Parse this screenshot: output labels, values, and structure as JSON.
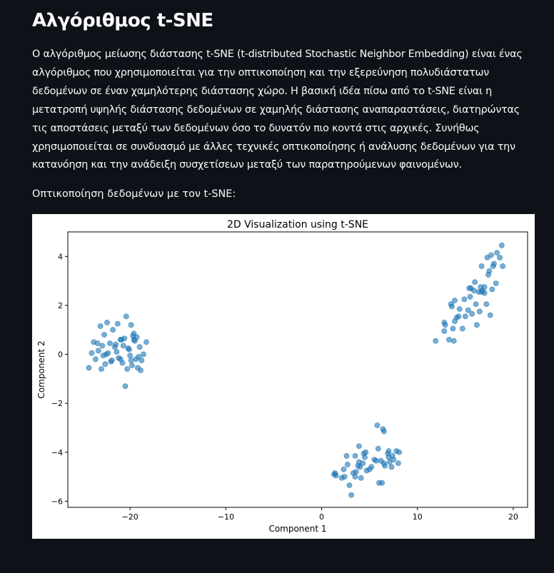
{
  "page": {
    "title": "Αλγόριθμος t-SNE",
    "intro": "Ο αλγόριθμος μείωσης διάστασης t-SNE (t-distributed Stochastic Neighbor Embedding) είναι ένας αλγόριθμος που χρησιμοποιείται για την οπτικοποίηση και την εξερεύνηση πολυδιάστατων δεδομένων σε έναν χαμηλότερης διάστασης χώρο. Η βασική ιδέα πίσω από το t-SNE είναι η μετατροπή υψηλής διάστασης δεδομένων σε χαμηλής διάστασης αναπαραστάσεις, διατηρώντας τις αποστάσεις μεταξύ των δεδομένων όσο το δυνατόν πιο κοντά στις αρχικές. Συνήθως χρησιμοποιείται σε συνδυασμό με άλλες τεχνικές οπτικοποίησης ή ανάλυσης δεδομένων για την κατανόηση και την ανάδειξη συσχετίσεων μεταξύ των παρατηρούμενων φαινομένων.",
    "subheading": "Οπτικοποίηση δεδομένων με τον t-SNE:"
  },
  "colors": {
    "background": "#0e1117",
    "text": "#fafafa",
    "point": "#1f77b4"
  },
  "chart_data": {
    "type": "scatter",
    "title": "2D Visualization using t-SNE",
    "xlabel": "Component 1",
    "ylabel": "Component 2",
    "xlim": [
      -26.5,
      21.5
    ],
    "ylim": [
      -6.25,
      5
    ],
    "xticks": [
      -20,
      -10,
      0,
      10,
      20
    ],
    "xtick_labels": [
      "−20",
      "−10",
      "0",
      "10",
      "20"
    ],
    "yticks": [
      -6,
      -4,
      -2,
      0,
      2,
      4
    ],
    "ytick_labels": [
      "−6",
      "−4",
      "−2",
      "0",
      "2",
      "4"
    ],
    "grid": false,
    "legend": "none",
    "series": [
      {
        "x": [
          -20.4,
          -22.4,
          -21.3,
          -19.9,
          -21.8,
          -23.1,
          -19.6,
          -22.7,
          -19.3,
          -20.6,
          -21.0,
          -23.8,
          -22.1,
          -19.7,
          -20.9,
          -19.5,
          -22.9,
          -21.6,
          -20.2,
          -19.0,
          -18.6,
          -24.0,
          -23.3,
          -21.4,
          -20.0,
          -22.5,
          -21.2,
          -19.4,
          -18.8,
          -23.6,
          -22.0,
          -20.8,
          -19.8,
          -24.3,
          -22.6,
          -21.9,
          -20.3,
          -19.2,
          -23.0,
          -18.9,
          -21.5,
          -20.1,
          -19.6,
          -22.8,
          -20.7,
          -23.4,
          -19.1,
          -21.0,
          -19.9,
          -22.3,
          -20.5,
          -18.3
        ],
        "y": [
          1.55,
          1.3,
          1.25,
          1.2,
          1.0,
          1.15,
          0.85,
          0.8,
          0.7,
          0.65,
          0.6,
          0.5,
          0.45,
          0.75,
          0.6,
          0.55,
          0.35,
          0.3,
          0.25,
          0.3,
          0.0,
          0.05,
          0.15,
          0.1,
          -0.05,
          0.0,
          -0.15,
          -0.2,
          -0.25,
          -0.2,
          -0.3,
          -0.35,
          -0.45,
          -0.55,
          -0.4,
          -0.25,
          -0.6,
          -0.55,
          -0.6,
          -0.65,
          0.4,
          0.2,
          0.6,
          -0.05,
          0.35,
          0.45,
          -0.1,
          -0.2,
          -0.25,
          0.05,
          -1.3,
          0.5
        ]
      },
      {
        "x": [
          18.8,
          18.3,
          17.7,
          18.6,
          17.3,
          18.0,
          17.5,
          16.7,
          18.9,
          17.9,
          17.4,
          16.0,
          17.0,
          16.6,
          15.4,
          15.9,
          16.8,
          16.4,
          15.5,
          14.9,
          13.9,
          16.1,
          17.2,
          15.3,
          14.4,
          13.6,
          16.5,
          15.7,
          17.6,
          15.0,
          14.3,
          12.8,
          13.9,
          14.7,
          13.7,
          12.9,
          16.2,
          17.0,
          13.3,
          13.8,
          12.8,
          11.9,
          18.2,
          15.6,
          16.7,
          14.1,
          13.5,
          17.8
        ],
        "y": [
          4.45,
          4.15,
          4.05,
          3.95,
          3.95,
          3.7,
          3.4,
          3.6,
          3.6,
          3.6,
          3.25,
          2.95,
          2.75,
          2.75,
          2.7,
          2.6,
          2.6,
          2.55,
          2.35,
          2.25,
          2.2,
          2.05,
          2.05,
          1.8,
          1.85,
          1.95,
          1.75,
          1.65,
          1.6,
          1.55,
          1.55,
          1.3,
          1.35,
          1.05,
          1.05,
          1.2,
          1.2,
          2.5,
          0.6,
          0.55,
          0.95,
          0.55,
          2.9,
          2.7,
          2.55,
          1.5,
          2.05,
          2.65
        ]
      },
      {
        "x": [
          5.8,
          6.4,
          6.5,
          7.0,
          7.8,
          4.6,
          8.1,
          5.9,
          6.9,
          7.4,
          3.5,
          4.5,
          2.6,
          3.9,
          5.7,
          6.2,
          7.1,
          8.0,
          2.7,
          4.3,
          3.8,
          5.2,
          6.6,
          7.3,
          1.4,
          2.3,
          3.3,
          4.7,
          4.0,
          7.0,
          2.4,
          3.5,
          4.1,
          6.0,
          6.3,
          2.9,
          3.1,
          1.3,
          3.9,
          5.0,
          6.5,
          7.5,
          3.6,
          4.4,
          2.1,
          1.5,
          5.5
        ],
        "y": [
          -2.9,
          -3.05,
          -3.15,
          -3.95,
          -3.95,
          -4.0,
          -4.0,
          -3.85,
          -4.05,
          -4.15,
          -4.15,
          -4.2,
          -4.15,
          -4.4,
          -4.35,
          -4.35,
          -4.4,
          -4.45,
          -4.5,
          -4.45,
          -4.55,
          -4.6,
          -4.55,
          -4.6,
          -4.85,
          -4.7,
          -4.85,
          -4.75,
          -4.6,
          -4.2,
          -5.0,
          -5.0,
          -5.05,
          -5.25,
          -5.25,
          -5.35,
          -5.75,
          -4.9,
          -3.75,
          -4.7,
          -4.45,
          -4.3,
          -4.8,
          -4.05,
          -5.05,
          -4.95,
          -4.3
        ]
      }
    ]
  }
}
